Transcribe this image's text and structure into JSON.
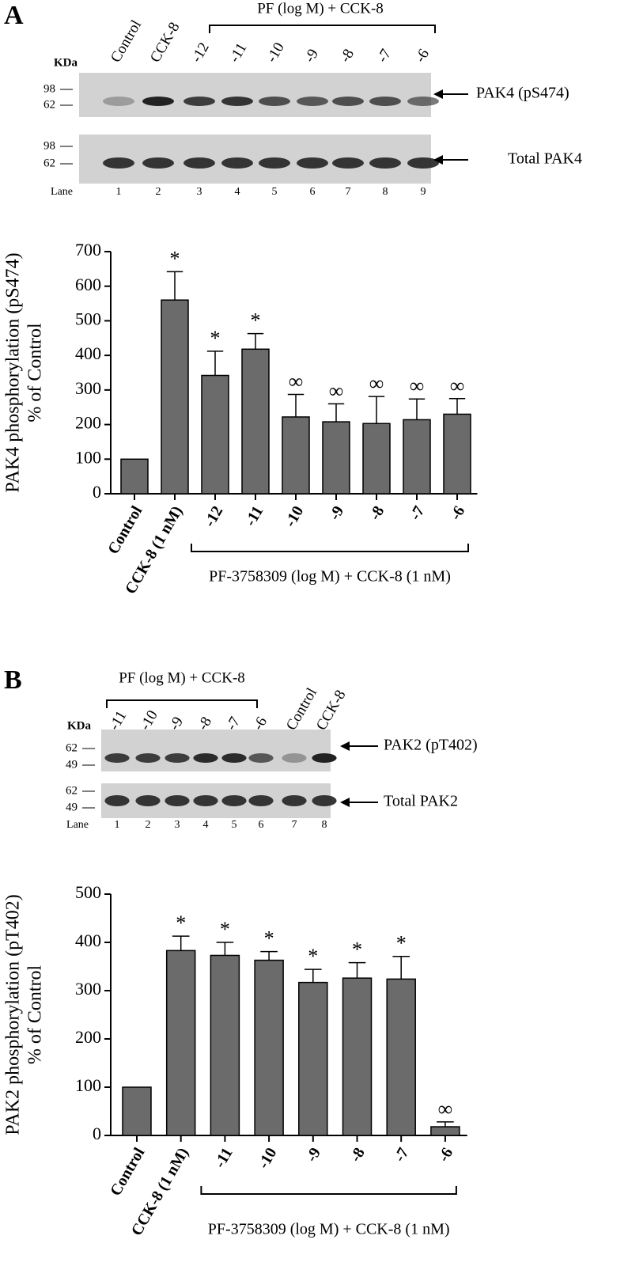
{
  "panels": [
    {
      "letter": "A",
      "header": "PF (log M) + CCK-8",
      "lanes": [
        "Control",
        "CCK-8",
        "-12",
        "-11",
        "-10",
        "-9",
        "-8",
        "-7",
        "-6"
      ],
      "kda": "KDa",
      "markers_top": [
        "98",
        "62"
      ],
      "markers_bottom": [
        "98",
        "62"
      ],
      "lane_title": "Lane",
      "lane_numbers": [
        "1",
        "2",
        "3",
        "4",
        "5",
        "6",
        "7",
        "8",
        "9"
      ],
      "band_top": "PAK4 (pS474)",
      "band_bottom": "Total PAK4"
    },
    {
      "letter": "B",
      "header": "PF (log M) + CCK-8",
      "lanes": [
        "-11",
        "-10",
        "-9",
        "-8",
        "-7",
        "-6",
        "Control",
        "CCK-8"
      ],
      "kda": "KDa",
      "markers_top": [
        "62",
        "49"
      ],
      "markers_bottom": [
        "62",
        "49"
      ],
      "lane_title": "Lane",
      "lane_numbers": [
        "1",
        "2",
        "3",
        "4",
        "5",
        "6",
        "7",
        "8"
      ],
      "band_top": "PAK2 (pT402)",
      "band_bottom": "Total PAK2"
    }
  ],
  "chart_data": [
    {
      "type": "bar",
      "ylabel": [
        "PAK4 phosphorylation (pS474)",
        "% of Control"
      ],
      "categories": [
        "Control",
        "CCK-8 (1 nM)",
        "-12",
        "-11",
        "-10",
        "-9",
        "-8",
        "-7",
        "-6"
      ],
      "values": [
        100,
        560,
        342,
        418,
        222,
        208,
        203,
        214,
        230
      ],
      "errors": [
        null,
        82,
        70,
        45,
        65,
        52,
        78,
        60,
        45
      ],
      "annotations": [
        null,
        "*",
        "*",
        "*",
        "∞",
        "∞",
        "∞",
        "∞",
        "∞"
      ],
      "group_label": "PF-3758309 (log M) + CCK-8 (1 nM)",
      "color": "#6b6b6b",
      "ylim": [
        0,
        700
      ],
      "yticks": [
        0,
        100,
        200,
        300,
        400,
        500,
        600,
        700
      ]
    },
    {
      "type": "bar",
      "ylabel": [
        "PAK2 phosphorylation (pT402)",
        "% of Control"
      ],
      "categories": [
        "Control",
        "CCK-8 (1 nM)",
        "-11",
        "-10",
        "-9",
        "-8",
        "-7",
        "-6"
      ],
      "values": [
        100,
        383,
        373,
        363,
        317,
        326,
        324,
        18
      ],
      "errors": [
        null,
        30,
        27,
        18,
        27,
        32,
        47,
        10
      ],
      "annotations": [
        null,
        "*",
        "*",
        "*",
        "*",
        "*",
        "*",
        "∞"
      ],
      "group_label": "PF-3758309 (log M) + CCK-8 (1 nM)",
      "color": "#6b6b6b",
      "ylim": [
        0,
        500
      ],
      "yticks": [
        0,
        100,
        200,
        300,
        400,
        500
      ]
    }
  ]
}
